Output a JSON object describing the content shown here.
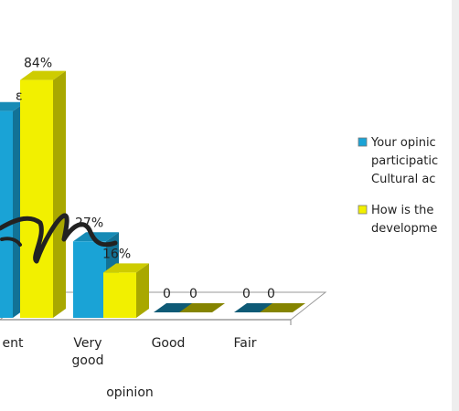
{
  "chart_data": {
    "type": "bar",
    "categories": [
      "ent",
      "Very good",
      "Good",
      "Fair"
    ],
    "category_lines": [
      [
        "ent"
      ],
      [
        "Very",
        "good"
      ],
      [
        "Good"
      ],
      [
        "Fair"
      ]
    ],
    "series": [
      {
        "name_lines": [
          "Your opinic",
          "participatic",
          "Cultural ac"
        ],
        "values": [
          73,
          27,
          0,
          0
        ],
        "labels": [
          "",
          "27%",
          "0",
          "0"
        ],
        "color": "#1aa3d6"
      },
      {
        "name_lines": [
          "How is the",
          "developme"
        ],
        "values": [
          84,
          16,
          0,
          0
        ],
        "labels": [
          "84%",
          "16%",
          "0",
          "0"
        ],
        "color": "#f2f000"
      }
    ],
    "xlabel": "opinion",
    "ylabel": "",
    "ylim": [
      0,
      100
    ],
    "grid": false,
    "legend": "right",
    "partial_label_fragment": "ε"
  }
}
